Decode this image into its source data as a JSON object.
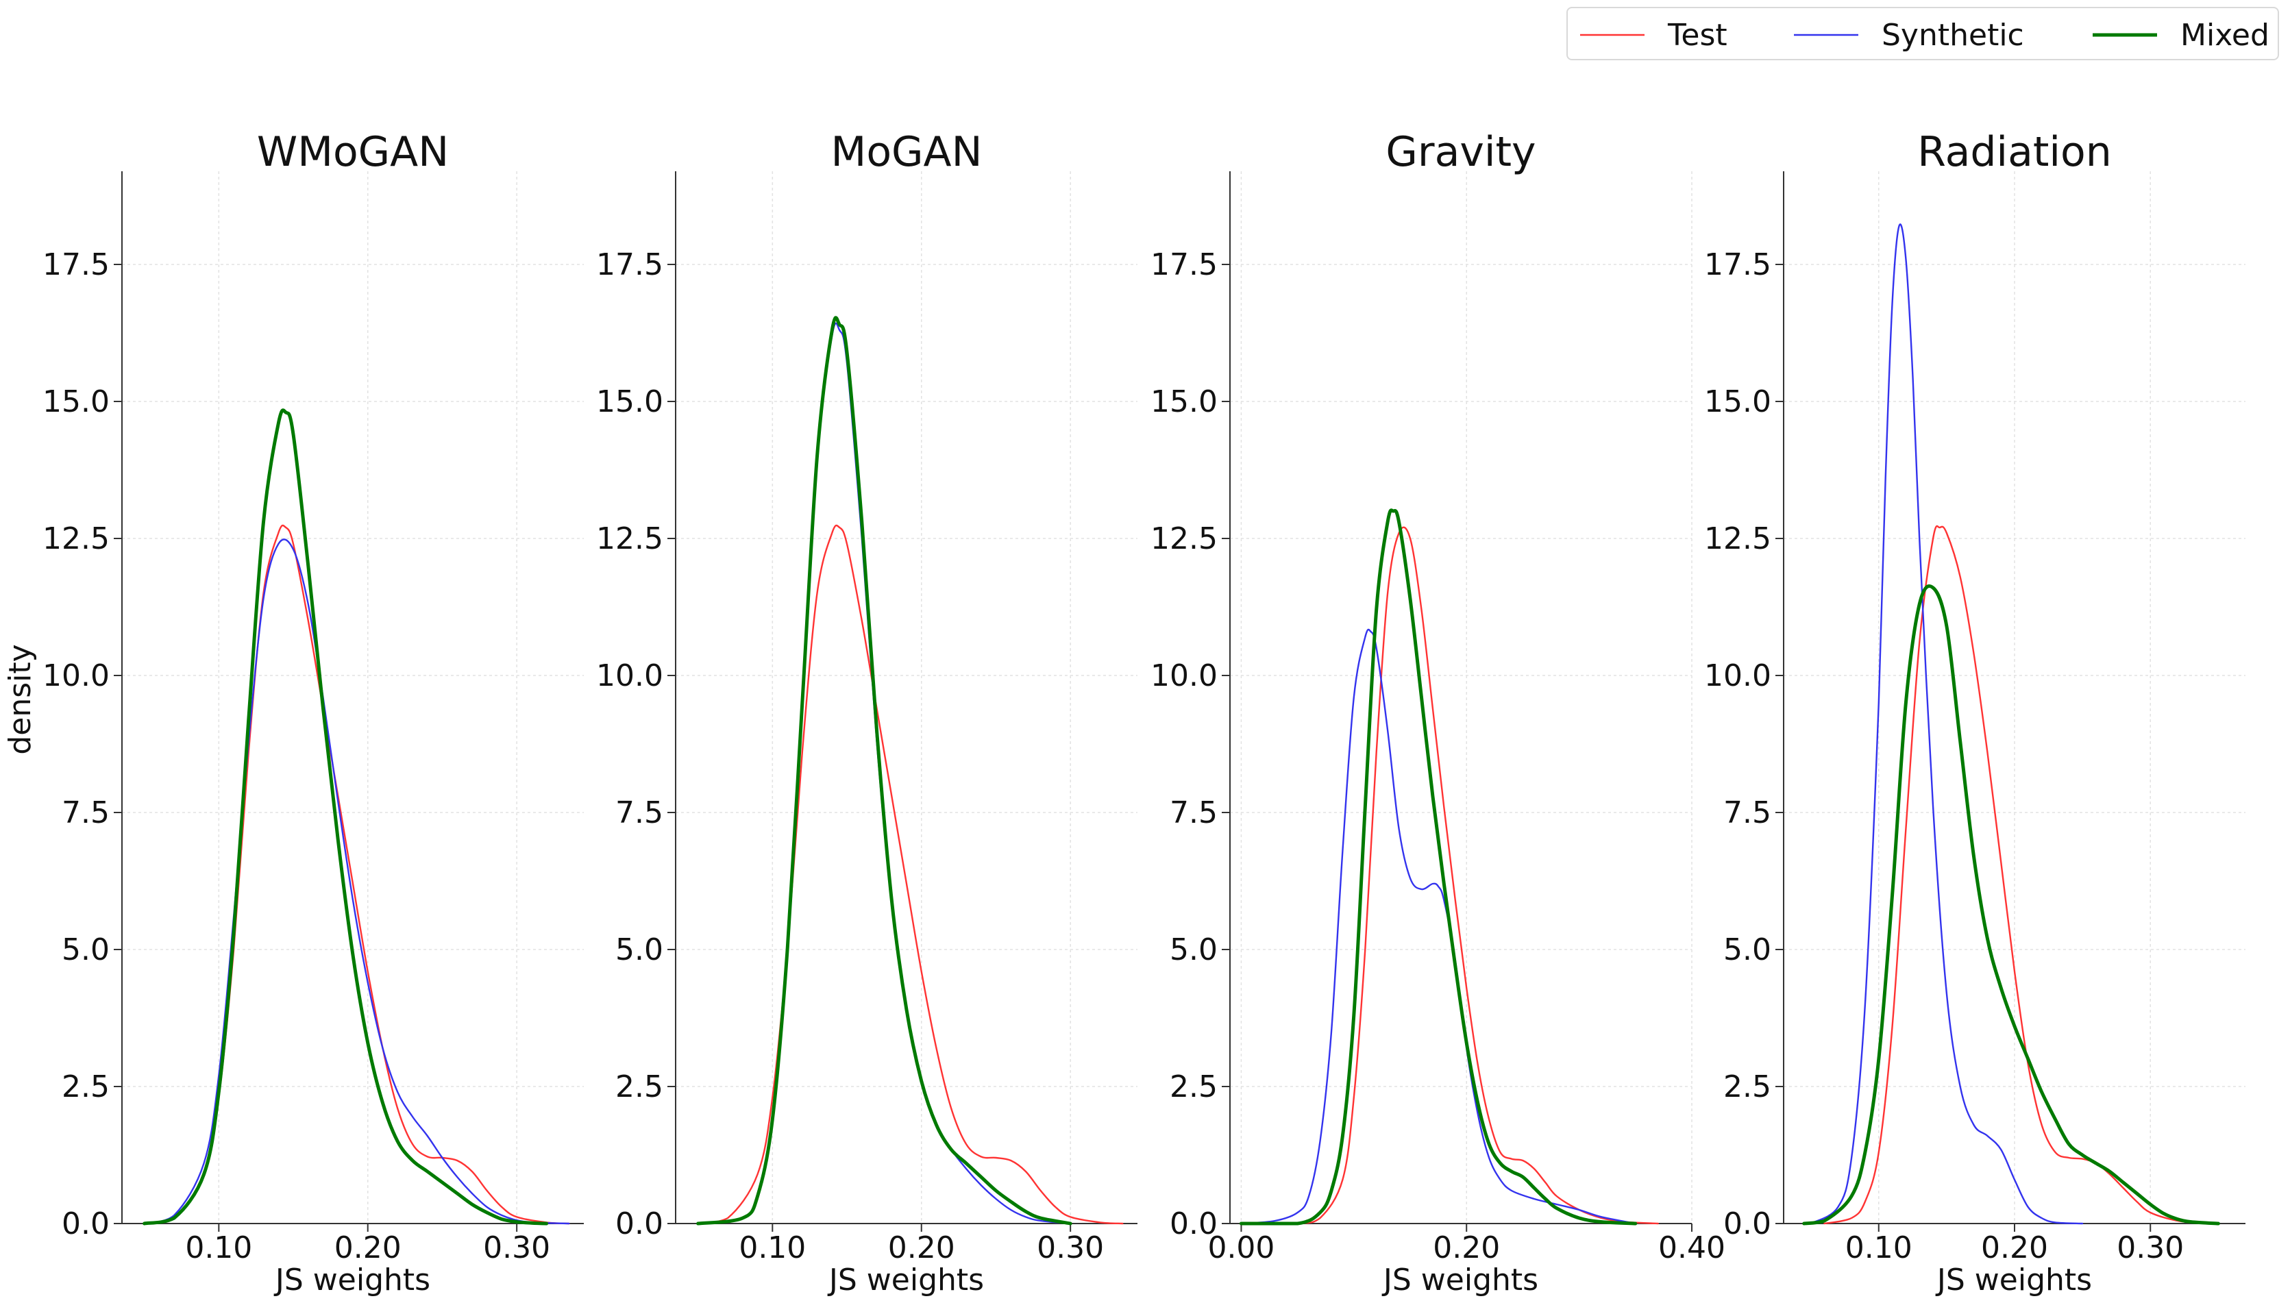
{
  "figure": {
    "ylabel": "density"
  },
  "legend": {
    "items": [
      {
        "label": "Test",
        "color": "#ff3333",
        "width": 2.4
      },
      {
        "label": "Synthetic",
        "color": "#3333ee",
        "width": 2.4
      },
      {
        "label": "Mixed",
        "color": "#007a00",
        "width": 5
      }
    ]
  },
  "chart_data": [
    {
      "type": "line",
      "title": "WMoGAN",
      "xlabel": "JS weights",
      "ylabel": "density",
      "xlim": [
        0.035,
        0.345
      ],
      "ylim": [
        0,
        19.2
      ],
      "xticks": [
        0.1,
        0.2,
        0.3
      ],
      "xtick_labels": [
        "0.10",
        "0.20",
        "0.30"
      ],
      "yticks": [
        0,
        2.5,
        5,
        7.5,
        10,
        12.5,
        15,
        17.5
      ],
      "ytick_labels": [
        "0.0",
        "2.5",
        "5.0",
        "7.5",
        "10.0",
        "12.5",
        "15.0",
        "17.5"
      ],
      "grid": true,
      "series": [
        {
          "name": "Test",
          "x": [
            0.05,
            0.07,
            0.09,
            0.1,
            0.11,
            0.12,
            0.13,
            0.14,
            0.145,
            0.15,
            0.16,
            0.17,
            0.18,
            0.19,
            0.2,
            0.21,
            0.22,
            0.23,
            0.24,
            0.25,
            0.26,
            0.27,
            0.28,
            0.29,
            0.3,
            0.32,
            0.335
          ],
          "y": [
            0,
            0.1,
            0.9,
            2.3,
            5.0,
            8.6,
            11.5,
            12.6,
            12.7,
            12.4,
            11.0,
            9.4,
            7.8,
            6.2,
            4.6,
            3.2,
            2.1,
            1.45,
            1.22,
            1.2,
            1.15,
            0.95,
            0.6,
            0.3,
            0.12,
            0.02,
            0
          ]
        },
        {
          "name": "Synthetic",
          "x": [
            0.05,
            0.07,
            0.09,
            0.1,
            0.11,
            0.12,
            0.13,
            0.14,
            0.15,
            0.16,
            0.17,
            0.18,
            0.19,
            0.2,
            0.21,
            0.22,
            0.23,
            0.24,
            0.25,
            0.26,
            0.27,
            0.28,
            0.29,
            0.3,
            0.31,
            0.32,
            0.335
          ],
          "y": [
            0,
            0.15,
            1.1,
            2.7,
            5.6,
            8.8,
            11.4,
            12.4,
            12.3,
            11.3,
            9.6,
            7.7,
            5.9,
            4.4,
            3.2,
            2.4,
            1.95,
            1.6,
            1.2,
            0.85,
            0.55,
            0.3,
            0.15,
            0.06,
            0.02,
            0.01,
            0
          ]
        },
        {
          "name": "Mixed",
          "x": [
            0.05,
            0.07,
            0.09,
            0.1,
            0.11,
            0.12,
            0.13,
            0.14,
            0.145,
            0.15,
            0.16,
            0.17,
            0.18,
            0.19,
            0.2,
            0.21,
            0.22,
            0.23,
            0.24,
            0.25,
            0.26,
            0.27,
            0.28,
            0.29,
            0.3,
            0.31,
            0.32
          ],
          "y": [
            0,
            0.1,
            0.9,
            2.4,
            5.3,
            9.2,
            12.8,
            14.6,
            14.8,
            14.4,
            12.0,
            9.4,
            7.0,
            4.9,
            3.3,
            2.2,
            1.5,
            1.15,
            0.95,
            0.75,
            0.55,
            0.35,
            0.2,
            0.08,
            0.03,
            0.01,
            0
          ]
        }
      ]
    },
    {
      "type": "line",
      "title": "MoGAN",
      "xlabel": "JS weights",
      "ylabel": "",
      "xlim": [
        0.035,
        0.345
      ],
      "ylim": [
        0,
        19.2
      ],
      "xticks": [
        0.1,
        0.2,
        0.3
      ],
      "xtick_labels": [
        "0.10",
        "0.20",
        "0.30"
      ],
      "yticks": [
        0,
        2.5,
        5,
        7.5,
        10,
        12.5,
        15,
        17.5
      ],
      "ytick_labels": [
        "0.0",
        "2.5",
        "5.0",
        "7.5",
        "10.0",
        "12.5",
        "15.0",
        "17.5"
      ],
      "grid": true,
      "series": [
        {
          "name": "Test",
          "x": [
            0.05,
            0.07,
            0.09,
            0.1,
            0.11,
            0.12,
            0.13,
            0.14,
            0.145,
            0.15,
            0.16,
            0.17,
            0.18,
            0.19,
            0.2,
            0.21,
            0.22,
            0.23,
            0.24,
            0.25,
            0.26,
            0.27,
            0.28,
            0.29,
            0.3,
            0.32,
            0.335
          ],
          "y": [
            0,
            0.1,
            0.9,
            2.3,
            5.0,
            8.6,
            11.5,
            12.6,
            12.7,
            12.4,
            11.0,
            9.4,
            7.8,
            6.2,
            4.6,
            3.2,
            2.1,
            1.45,
            1.22,
            1.2,
            1.15,
            0.95,
            0.6,
            0.3,
            0.12,
            0.02,
            0
          ]
        },
        {
          "name": "Synthetic",
          "x": [
            0.05,
            0.08,
            0.09,
            0.1,
            0.11,
            0.12,
            0.13,
            0.14,
            0.145,
            0.15,
            0.16,
            0.17,
            0.18,
            0.19,
            0.2,
            0.21,
            0.22,
            0.23,
            0.24,
            0.25,
            0.26,
            0.27,
            0.28,
            0.3
          ],
          "y": [
            0,
            0.1,
            0.5,
            1.9,
            5.0,
            9.5,
            14.0,
            16.2,
            16.3,
            15.7,
            12.5,
            8.8,
            5.8,
            3.9,
            2.6,
            1.8,
            1.35,
            1.0,
            0.7,
            0.45,
            0.25,
            0.12,
            0.05,
            0
          ]
        },
        {
          "name": "Mixed",
          "x": [
            0.05,
            0.08,
            0.09,
            0.1,
            0.11,
            0.12,
            0.13,
            0.14,
            0.145,
            0.15,
            0.16,
            0.17,
            0.18,
            0.19,
            0.2,
            0.21,
            0.22,
            0.23,
            0.24,
            0.25,
            0.26,
            0.27,
            0.28,
            0.3
          ],
          "y": [
            0,
            0.1,
            0.5,
            1.9,
            5.0,
            9.5,
            14.0,
            16.3,
            16.4,
            15.9,
            12.8,
            9.0,
            5.9,
            3.9,
            2.6,
            1.8,
            1.35,
            1.1,
            0.85,
            0.6,
            0.4,
            0.22,
            0.1,
            0
          ]
        }
      ]
    },
    {
      "type": "line",
      "title": "Gravity",
      "xlabel": "JS weights",
      "ylabel": "",
      "xlim": [
        -0.01,
        0.4
      ],
      "ylim": [
        0,
        19.2
      ],
      "xticks": [
        0.0,
        0.2,
        0.4
      ],
      "xtick_labels": [
        "0.00",
        "0.20",
        "0.40"
      ],
      "yticks": [
        0,
        2.5,
        5,
        7.5,
        10,
        12.5,
        15,
        17.5
      ],
      "ytick_labels": [
        "0.0",
        "2.5",
        "5.0",
        "7.5",
        "10.0",
        "12.5",
        "15.0",
        "17.5"
      ],
      "grid": true,
      "series": [
        {
          "name": "Test",
          "x": [
            0.0,
            0.05,
            0.07,
            0.09,
            0.1,
            0.11,
            0.12,
            0.13,
            0.14,
            0.15,
            0.16,
            0.17,
            0.18,
            0.19,
            0.2,
            0.21,
            0.22,
            0.23,
            0.24,
            0.25,
            0.26,
            0.27,
            0.28,
            0.3,
            0.32,
            0.34,
            0.37
          ],
          "y": [
            0,
            0,
            0.1,
            0.8,
            2.3,
            5.0,
            8.6,
            11.5,
            12.6,
            12.5,
            11.2,
            9.4,
            7.6,
            5.9,
            4.3,
            2.9,
            1.9,
            1.3,
            1.18,
            1.15,
            1.0,
            0.75,
            0.5,
            0.25,
            0.1,
            0.03,
            0
          ]
        },
        {
          "name": "Synthetic",
          "x": [
            0.0,
            0.03,
            0.05,
            0.06,
            0.07,
            0.08,
            0.09,
            0.1,
            0.11,
            0.115,
            0.12,
            0.13,
            0.14,
            0.15,
            0.16,
            0.17,
            0.175,
            0.18,
            0.19,
            0.2,
            0.21,
            0.22,
            0.23,
            0.24,
            0.26,
            0.28,
            0.3,
            0.32,
            0.35
          ],
          "y": [
            0,
            0.05,
            0.2,
            0.5,
            1.5,
            3.5,
            6.8,
            9.6,
            10.7,
            10.8,
            10.5,
            9.0,
            7.2,
            6.3,
            6.1,
            6.2,
            6.15,
            5.9,
            4.8,
            3.2,
            2.0,
            1.2,
            0.8,
            0.6,
            0.45,
            0.35,
            0.25,
            0.12,
            0
          ]
        },
        {
          "name": "Mixed",
          "x": [
            0.0,
            0.05,
            0.07,
            0.08,
            0.09,
            0.1,
            0.11,
            0.12,
            0.13,
            0.135,
            0.14,
            0.15,
            0.16,
            0.17,
            0.18,
            0.19,
            0.2,
            0.21,
            0.22,
            0.23,
            0.24,
            0.25,
            0.26,
            0.27,
            0.28,
            0.3,
            0.32,
            0.35
          ],
          "y": [
            0,
            0,
            0.2,
            0.6,
            1.6,
            3.8,
            7.6,
            11.2,
            12.8,
            13.0,
            12.8,
            11.4,
            9.6,
            7.8,
            6.2,
            4.7,
            3.3,
            2.2,
            1.45,
            1.1,
            0.95,
            0.85,
            0.65,
            0.45,
            0.28,
            0.1,
            0.03,
            0
          ]
        }
      ]
    },
    {
      "type": "line",
      "title": "Radiation",
      "xlabel": "JS weights",
      "ylabel": "",
      "xlim": [
        0.03,
        0.37
      ],
      "ylim": [
        0,
        19.2
      ],
      "xticks": [
        0.1,
        0.2,
        0.3
      ],
      "xtick_labels": [
        "0.10",
        "0.20",
        "0.30"
      ],
      "yticks": [
        0,
        2.5,
        5,
        7.5,
        10,
        12.5,
        15,
        17.5
      ],
      "ytick_labels": [
        "0.0",
        "2.5",
        "5.0",
        "7.5",
        "10.0",
        "12.5",
        "15.0",
        "17.5"
      ],
      "grid": true,
      "series": [
        {
          "name": "Test",
          "x": [
            0.06,
            0.08,
            0.09,
            0.1,
            0.11,
            0.12,
            0.13,
            0.14,
            0.145,
            0.15,
            0.16,
            0.17,
            0.18,
            0.19,
            0.2,
            0.21,
            0.22,
            0.23,
            0.24,
            0.25,
            0.26,
            0.27,
            0.28,
            0.29,
            0.3,
            0.32,
            0.34
          ],
          "y": [
            0,
            0.1,
            0.4,
            1.3,
            3.6,
            7.2,
            10.6,
            12.5,
            12.7,
            12.6,
            11.8,
            10.4,
            8.6,
            6.6,
            4.6,
            2.9,
            1.8,
            1.3,
            1.2,
            1.18,
            1.1,
            0.9,
            0.65,
            0.4,
            0.2,
            0.05,
            0
          ]
        },
        {
          "name": "Synthetic",
          "x": [
            0.05,
            0.07,
            0.08,
            0.09,
            0.1,
            0.105,
            0.11,
            0.115,
            0.12,
            0.125,
            0.13,
            0.14,
            0.15,
            0.16,
            0.17,
            0.18,
            0.19,
            0.2,
            0.21,
            0.22,
            0.23,
            0.25
          ],
          "y": [
            0,
            0.3,
            1.2,
            4.0,
            9.5,
            13.6,
            16.8,
            18.2,
            17.6,
            15.5,
            12.5,
            7.6,
            4.2,
            2.5,
            1.8,
            1.6,
            1.35,
            0.8,
            0.3,
            0.1,
            0.02,
            0
          ]
        },
        {
          "name": "Mixed",
          "x": [
            0.045,
            0.06,
            0.08,
            0.09,
            0.1,
            0.11,
            0.12,
            0.13,
            0.14,
            0.15,
            0.16,
            0.17,
            0.18,
            0.19,
            0.2,
            0.21,
            0.22,
            0.23,
            0.24,
            0.25,
            0.26,
            0.27,
            0.28,
            0.29,
            0.3,
            0.31,
            0.32,
            0.33,
            0.35
          ],
          "y": [
            0,
            0.05,
            0.5,
            1.3,
            3.0,
            6.0,
            9.5,
            11.3,
            11.6,
            10.9,
            8.8,
            6.7,
            5.2,
            4.3,
            3.6,
            3.0,
            2.4,
            1.9,
            1.45,
            1.25,
            1.1,
            0.95,
            0.75,
            0.55,
            0.35,
            0.18,
            0.08,
            0.03,
            0
          ]
        }
      ]
    }
  ]
}
